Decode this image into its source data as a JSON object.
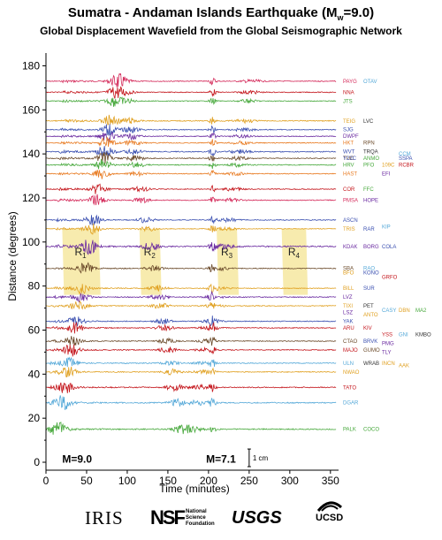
{
  "header": {
    "title_main": "Sumatra - Andaman Islands Earthquake (M",
    "title_sub": "w",
    "title_end": "=9.0)",
    "subtitle": "Global Displacement Wavefield from the Global Seismographic Network"
  },
  "chart_data": {
    "type": "line",
    "xlabel": "Time (minutes)",
    "ylabel": "Distance (degrees)",
    "xlim": [
      0,
      360
    ],
    "ylim": [
      -2,
      185
    ],
    "xticks": [
      0,
      50,
      100,
      150,
      200,
      250,
      300,
      350
    ],
    "yticks": [
      0,
      20,
      40,
      60,
      80,
      100,
      120,
      140,
      160,
      180
    ],
    "grid": false,
    "series": [
      {
        "name": "PAYG",
        "distance": 173,
        "color": "#d42a5a",
        "amp": 1.0
      },
      {
        "name": "NNA",
        "distance": 168,
        "color": "#c4161c",
        "amp": 1.0
      },
      {
        "name": "JTS",
        "distance": 164,
        "color": "#46a83b",
        "amp": 0.9
      },
      {
        "name": "TEIG",
        "distance": 155,
        "color": "#e0a020",
        "amp": 1.1
      },
      {
        "name": "SJG",
        "distance": 151,
        "color": "#3a4fb0",
        "amp": 1.0
      },
      {
        "name": "DWPF",
        "distance": 148,
        "color": "#6a2aa0",
        "amp": 1.0
      },
      {
        "name": "HKT",
        "distance": 145,
        "color": "#e87a20",
        "amp": 1.0
      },
      {
        "name": "WVT",
        "distance": 141,
        "color": "#3a4fb0",
        "amp": 1.1
      },
      {
        "name": "TUC",
        "distance": 138,
        "color": "#6b4a2a",
        "amp": 1.0
      },
      {
        "name": "HRV",
        "distance": 135,
        "color": "#46a83b",
        "amp": 1.0
      },
      {
        "name": "HAST",
        "distance": 131,
        "color": "#e87a20",
        "amp": 0.9
      },
      {
        "name": "COR",
        "distance": 124,
        "color": "#c4161c",
        "amp": 1.0
      },
      {
        "name": "PMSA",
        "distance": 119,
        "color": "#d42a5a",
        "amp": 1.0
      },
      {
        "name": "ASCN",
        "distance": 110,
        "color": "#3a4fb0",
        "amp": 1.0
      },
      {
        "name": "TRIS",
        "distance": 106,
        "color": "#e0a020",
        "amp": 0.9
      },
      {
        "name": "KDAK",
        "distance": 98,
        "color": "#6a2aa0",
        "amp": 1.4
      },
      {
        "name": "SBA",
        "distance": 88,
        "color": "#6b4a2a",
        "amp": 1.0
      },
      {
        "name": "BILL",
        "distance": 79,
        "color": "#e0a020",
        "amp": 1.0
      },
      {
        "name": "LVZ",
        "distance": 75,
        "color": "#6a2aa0",
        "amp": 1.0
      },
      {
        "name": "TIXI",
        "distance": 71,
        "color": "#e0a020",
        "amp": 1.0
      },
      {
        "name": "YAK",
        "distance": 64,
        "color": "#3a4fb0",
        "amp": 1.0
      },
      {
        "name": "ARU",
        "distance": 61,
        "color": "#c4161c",
        "amp": 1.0
      },
      {
        "name": "CTAO",
        "distance": 55,
        "color": "#6b4a2a",
        "amp": 1.0
      },
      {
        "name": "MAJO",
        "distance": 51,
        "color": "#c4161c",
        "amp": 1.0
      },
      {
        "name": "ULN",
        "distance": 45,
        "color": "#54a8d8",
        "amp": 1.0
      },
      {
        "name": "NWAO",
        "distance": 41,
        "color": "#e0a020",
        "amp": 1.0
      },
      {
        "name": "TATO",
        "distance": 34,
        "color": "#c4161c",
        "amp": 1.2
      },
      {
        "name": "DGAR",
        "distance": 27,
        "color": "#54a8d8",
        "amp": 1.3
      },
      {
        "name": "PALK",
        "distance": 15,
        "color": "#46a83b",
        "amp": 1.3
      }
    ],
    "extra_labels": [
      {
        "text": "OTAV",
        "distance": 173,
        "color": "#54a8d8",
        "col": 1
      },
      {
        "text": "LVC",
        "distance": 155,
        "color": "#333333",
        "col": 1
      },
      {
        "text": "RPN",
        "distance": 145,
        "color": "#6b4a2a",
        "col": 1
      },
      {
        "text": "TRQA",
        "distance": 141,
        "color": "#333333",
        "col": 1
      },
      {
        "text": "Y22C",
        "distance": 138,
        "color": "#3a4fb0",
        "col": 0
      },
      {
        "text": "ANMO",
        "distance": 138,
        "color": "#46a83b",
        "col": 1
      },
      {
        "text": "SSPA",
        "distance": 138,
        "color": "#3a4fb0",
        "col": 3
      },
      {
        "text": "CCM",
        "distance": 140,
        "color": "#54a8d8",
        "col": 3
      },
      {
        "text": "PFO",
        "distance": 135,
        "color": "#46a83b",
        "col": 1
      },
      {
        "text": "109C",
        "distance": 135,
        "color": "#e0a020",
        "col": 2
      },
      {
        "text": "RCBR",
        "distance": 135,
        "color": "#c4161c",
        "col": 3
      },
      {
        "text": "EFI",
        "distance": 131,
        "color": "#6a2aa0",
        "col": 2
      },
      {
        "text": "FFC",
        "distance": 124,
        "color": "#46a83b",
        "col": 1
      },
      {
        "text": "HOPE",
        "distance": 119,
        "color": "#6a2aa0",
        "col": 1
      },
      {
        "text": "RAR",
        "distance": 106,
        "color": "#3a4fb0",
        "col": 1
      },
      {
        "text": "KIP",
        "distance": 107,
        "color": "#54a8d8",
        "col": 2
      },
      {
        "text": "BORG",
        "distance": 98,
        "color": "#6a2aa0",
        "col": 1
      },
      {
        "text": "COLA",
        "distance": 98,
        "color": "#3a4fb0",
        "col": 2
      },
      {
        "text": "RAO",
        "distance": 88,
        "color": "#54a8d8",
        "col": 1
      },
      {
        "text": "BFO",
        "distance": 86,
        "color": "#e0a020",
        "col": 0
      },
      {
        "text": "KONO",
        "distance": 86,
        "color": "#3a4fb0",
        "col": 1
      },
      {
        "text": "GRFO",
        "distance": 84,
        "color": "#c4161c",
        "col": 2
      },
      {
        "text": "SUR",
        "distance": 79,
        "color": "#3a4fb0",
        "col": 1
      },
      {
        "text": "PET",
        "distance": 71,
        "color": "#333333",
        "col": 1
      },
      {
        "text": "CASY",
        "distance": 69,
        "color": "#54a8d8",
        "col": 2
      },
      {
        "text": "DBN",
        "distance": 69,
        "color": "#e0a020",
        "col": 3
      },
      {
        "text": "MA2",
        "distance": 69,
        "color": "#46a83b",
        "col": 4
      },
      {
        "text": "LSZ",
        "distance": 68,
        "color": "#6a2aa0",
        "col": 0
      },
      {
        "text": "ANTO",
        "distance": 67,
        "color": "#e0a020",
        "col": 1
      },
      {
        "text": "KIV",
        "distance": 61,
        "color": "#c4161c",
        "col": 1
      },
      {
        "text": "YSS",
        "distance": 58,
        "color": "#c4161c",
        "col": 2
      },
      {
        "text": "GNI",
        "distance": 58,
        "color": "#54a8d8",
        "col": 3
      },
      {
        "text": "KMBO",
        "distance": 58,
        "color": "#333333",
        "col": 4
      },
      {
        "text": "BRVK",
        "distance": 55,
        "color": "#3a4fb0",
        "col": 1
      },
      {
        "text": "PMG",
        "distance": 54,
        "color": "#6a2aa0",
        "col": 2
      },
      {
        "text": "GUMO",
        "distance": 51,
        "color": "#6b4a2a",
        "col": 1
      },
      {
        "text": "TLY",
        "distance": 50,
        "color": "#6a2aa0",
        "col": 2
      },
      {
        "text": "WRAB",
        "distance": 45,
        "color": "#333333",
        "col": 1
      },
      {
        "text": "INCN",
        "distance": 45,
        "color": "#e0a020",
        "col": 2
      },
      {
        "text": "AAK",
        "distance": 44,
        "color": "#e0a020",
        "col": 3
      },
      {
        "text": "COCO",
        "distance": 15,
        "color": "#46a83b",
        "col": 1
      }
    ],
    "phases": [
      {
        "label": "R",
        "sub": "1",
        "start_min": 20,
        "end_min": 65
      },
      {
        "label": "R",
        "sub": "2",
        "start_min": 115,
        "end_min": 140
      },
      {
        "label": "R",
        "sub": "3",
        "start_min": 210,
        "end_min": 235
      },
      {
        "label": "R",
        "sub": "4",
        "start_min": 290,
        "end_min": 320
      }
    ],
    "annotations": [
      {
        "text": "M=9.0",
        "x_min": 20
      },
      {
        "text": "M=7.1",
        "x_min": 197
      }
    ],
    "scale_bar_label": "1 cm"
  },
  "logos": {
    "iris": "IRIS",
    "nsf_mark": "NSF",
    "nsf_line1": "National",
    "nsf_line2": "Science",
    "nsf_line3": "Foundation",
    "usgs": "USGS",
    "ucsd": "UCSD"
  }
}
